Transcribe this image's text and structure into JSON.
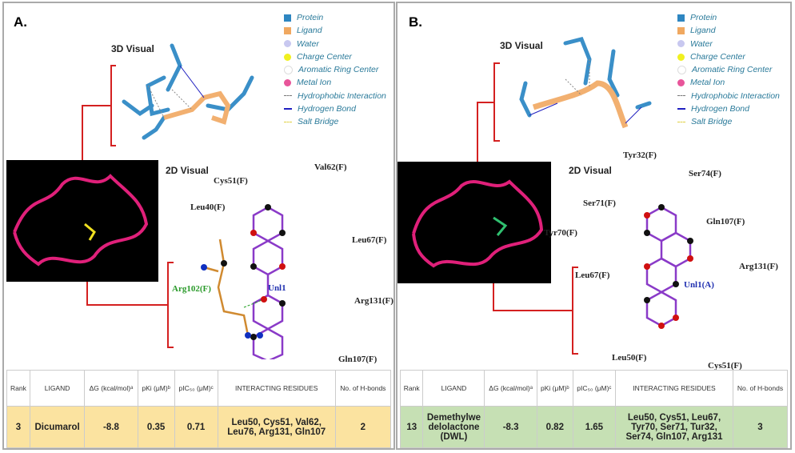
{
  "legend": {
    "items": [
      {
        "label": "Protein",
        "color": "#2e86c1"
      },
      {
        "label": "Ligand",
        "color": "#f0a860"
      },
      {
        "label": "Water",
        "color": "#c8c8f0"
      },
      {
        "label": "Charge Center",
        "color": "#f0f020"
      },
      {
        "label": "Aromatic Ring Center",
        "color": "#ffffff"
      },
      {
        "label": "Metal Ion",
        "color": "#e8559a"
      }
    ],
    "lines": [
      {
        "label": "Hydrophobic Interaction",
        "color": "#777777"
      },
      {
        "label": "Hydrogen Bond",
        "color": "#2020c0"
      },
      {
        "label": "Salt Bridge",
        "color": "#e0d040"
      }
    ]
  },
  "labels": {
    "visual3d": "3D Visual",
    "visual2d": "2D Visual"
  },
  "table_headers": [
    "Rank",
    "LIGAND",
    "ΔG (kcal/mol)ᵃ",
    "pKi (μM)ᵇ",
    "pIC₅₀ (μM)ᶜ",
    "INTERACTING RESIDUES",
    "No. of H-bonds"
  ],
  "panels": [
    {
      "letter": "A.",
      "residues": [
        "Cys51(F)",
        "Val62(F)",
        "Leu40(F)",
        "Leu67(F)",
        "Arg102(F)",
        "Unl1",
        "Arg131(F)",
        "Gln107(F)"
      ],
      "row": {
        "rank": "3",
        "ligand": "Dicumarol",
        "dg": "-8.8",
        "pki": "0.35",
        "pic50": "0.71",
        "residues": "Leu50, Cys51, Val62, Leu76, Arg131, Gln107",
        "hbonds": "2"
      },
      "row_color": "#fbe3a0"
    },
    {
      "letter": "B.",
      "residues": [
        "Tyr32(F)",
        "Ser74(F)",
        "Ser71(F)",
        "Gln107(F)",
        "Tyr70(F)",
        "Arg131(F)",
        "Leu67(F)",
        "Unl1(A)",
        "Leu50(F)",
        "Cys51(F)"
      ],
      "row": {
        "rank": "13",
        "ligand": "Demethylwe delolactone (DWL)",
        "dg": "-8.3",
        "pki": "0.82",
        "pic50": "1.65",
        "residues": "Leu50, Cys51, Leu67, Tyr70, Ser71, Tur32, Ser74, Gln107, Arg131",
        "hbonds": "3"
      },
      "row_color": "#c6e0b4"
    }
  ]
}
